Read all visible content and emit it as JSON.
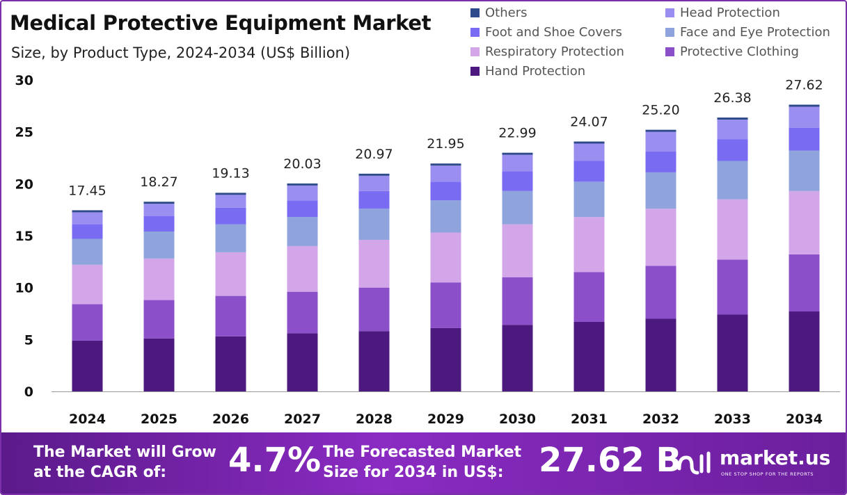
{
  "title": "Medical Protective Equipment Market",
  "subtitle": "Size, by Product Type, 2024-2034 (US$ Billion)",
  "legend": [
    {
      "name": "Others",
      "color": "#2e4a8a"
    },
    {
      "name": "Head Protection",
      "color": "#9a8ff0"
    },
    {
      "name": "Foot and Shoe Covers",
      "color": "#7a6cf2"
    },
    {
      "name": "Face and Eye Protection",
      "color": "#8fa4dd"
    },
    {
      "name": "Respiratory Protection",
      "color": "#d3a6ea"
    },
    {
      "name": "Protective Clothing",
      "color": "#8a4fc9"
    },
    {
      "name": "Hand Protection",
      "color": "#4c1a7e"
    }
  ],
  "chart_data": {
    "type": "bar",
    "stacked": true,
    "categories": [
      "2024",
      "2025",
      "2026",
      "2027",
      "2028",
      "2029",
      "2030",
      "2031",
      "2032",
      "2033",
      "2034"
    ],
    "ylim": [
      0,
      30
    ],
    "yticks": [
      "0",
      "5",
      "10",
      "15",
      "20",
      "25",
      "30"
    ],
    "totals": [
      "17.45",
      "18.27",
      "19.13",
      "20.03",
      "20.97",
      "21.95",
      "22.99",
      "24.07",
      "25.20",
      "26.38",
      "27.62"
    ],
    "series": [
      {
        "name": "Hand Protection",
        "color": "#4c1a7e",
        "values": [
          4.9,
          5.1,
          5.3,
          5.6,
          5.8,
          6.1,
          6.4,
          6.7,
          7.0,
          7.4,
          7.7
        ]
      },
      {
        "name": "Protective Clothing",
        "color": "#8a4fc9",
        "values": [
          3.5,
          3.7,
          3.9,
          4.0,
          4.2,
          4.4,
          4.6,
          4.8,
          5.1,
          5.3,
          5.5
        ]
      },
      {
        "name": "Respiratory Protection",
        "color": "#d3a6ea",
        "values": [
          3.8,
          4.0,
          4.2,
          4.4,
          4.6,
          4.8,
          5.1,
          5.3,
          5.5,
          5.8,
          6.1
        ]
      },
      {
        "name": "Face and Eye Protection",
        "color": "#8fa4dd",
        "values": [
          2.5,
          2.6,
          2.7,
          2.8,
          3.0,
          3.1,
          3.2,
          3.4,
          3.5,
          3.7,
          3.9
        ]
      },
      {
        "name": "Foot and Shoe Covers",
        "color": "#7a6cf2",
        "values": [
          1.4,
          1.5,
          1.6,
          1.6,
          1.7,
          1.8,
          1.9,
          2.0,
          2.0,
          2.1,
          2.2
        ]
      },
      {
        "name": "Head Protection",
        "color": "#9a8ff0",
        "values": [
          1.15,
          1.17,
          1.23,
          1.43,
          1.47,
          1.55,
          1.59,
          1.67,
          1.9,
          1.88,
          2.02
        ]
      },
      {
        "name": "Others",
        "color": "#2e4a8a",
        "values": [
          0.2,
          0.2,
          0.2,
          0.2,
          0.2,
          0.2,
          0.2,
          0.2,
          0.2,
          0.2,
          0.2
        ]
      }
    ]
  },
  "footer": {
    "cagr_text_line1": "The Market will Grow",
    "cagr_text_line2": "at the CAGR of:",
    "cagr_value": "4.7%",
    "forecast_text_line1": "The Forecasted Market",
    "forecast_text_line2": "Size for 2034 in US$:",
    "forecast_value": "27.62 B",
    "brand_name": "market.us",
    "brand_tagline": "ONE STOP SHOP FOR THE REPORTS"
  }
}
